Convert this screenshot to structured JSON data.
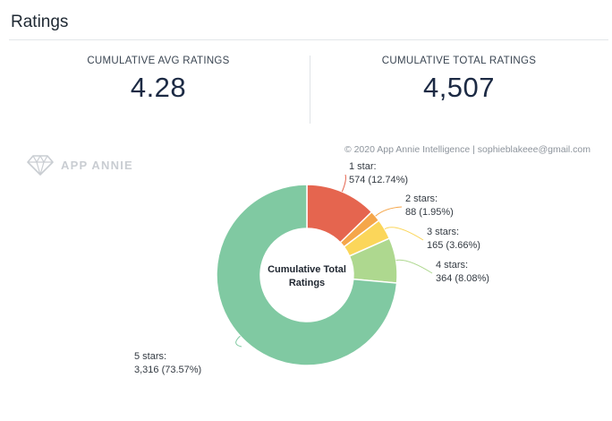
{
  "section": {
    "title": "Ratings"
  },
  "stats": {
    "avg_label": "CUMULATIVE AVG RATINGS",
    "avg_value": "4.28",
    "total_label": "CUMULATIVE TOTAL RATINGS",
    "total_value": "4,507"
  },
  "watermark": {
    "text": "APP ANNIE",
    "icon": "diamond-logo-icon"
  },
  "copyright": "© 2020 App Annie Intelligence | sophieblakeee@gmail.com",
  "chart_data": {
    "type": "pie",
    "donut": true,
    "center_label": [
      "Cumulative Total",
      "Ratings"
    ],
    "slices": [
      {
        "label": "1 star:",
        "value": 574,
        "value_text": "574 (12.74%)",
        "percent": 12.74,
        "color": "#e5654f"
      },
      {
        "label": "2 stars:",
        "value": 88,
        "value_text": "88 (1.95%)",
        "percent": 1.95,
        "color": "#f5a64a"
      },
      {
        "label": "3 stars:",
        "value": 165,
        "value_text": "165 (3.66%)",
        "percent": 3.66,
        "color": "#fbd65a"
      },
      {
        "label": "4 stars:",
        "value": 364,
        "value_text": "364 (8.08%)",
        "percent": 8.08,
        "color": "#aed88f"
      },
      {
        "label": "5 stars:",
        "value": 3316,
        "value_text": "3,316 (73.57%)",
        "percent": 73.57,
        "color": "#80c9a2"
      }
    ]
  }
}
